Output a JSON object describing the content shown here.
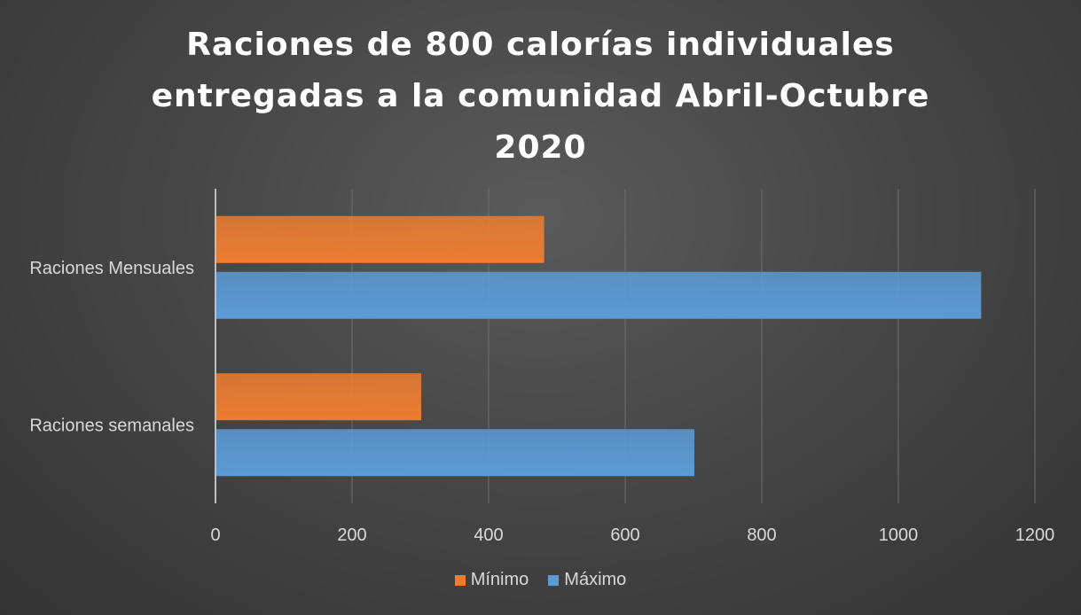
{
  "chart_data": {
    "type": "bar",
    "orientation": "horizontal",
    "title_lines": [
      "Raciones de 800 calorías individuales",
      "entregadas a la comunidad Abril-Octubre",
      "2020"
    ],
    "categories": [
      "Raciones Mensuales",
      "Raciones semanales"
    ],
    "series": [
      {
        "name": "Mínimo",
        "color": "#ed7d31",
        "values": [
          480,
          300
        ]
      },
      {
        "name": "Máximo",
        "color": "#5b9bd5",
        "values": [
          1120,
          700
        ]
      }
    ],
    "xlim": [
      0,
      1200
    ],
    "x_ticks": [
      "0",
      "200",
      "400",
      "600",
      "800",
      "1000",
      "1200"
    ],
    "grid": true,
    "legend_position": "bottom"
  }
}
